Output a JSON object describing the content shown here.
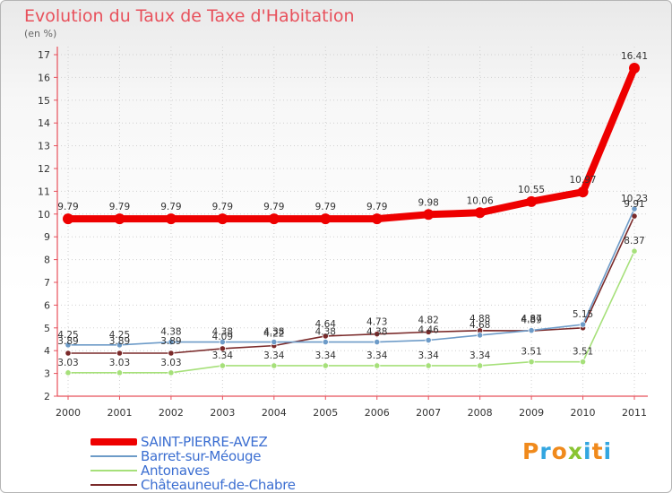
{
  "title": "Evolution du Taux de Taxe d'Habitation",
  "subtitle": "(en %)",
  "brand": {
    "letters": [
      "P",
      "r",
      "o",
      "x",
      "i",
      "t",
      "i"
    ],
    "colors": [
      "#f08a1c",
      "#33a6e0",
      "#f08a1c",
      "#8ac432",
      "#33a6e0",
      "#f08a1c",
      "#33a6e0"
    ]
  },
  "chart_data": {
    "type": "line",
    "x": [
      "2000",
      "2001",
      "2002",
      "2003",
      "2004",
      "2005",
      "2006",
      "2007",
      "2008",
      "2009",
      "2010",
      "2011"
    ],
    "ylim": [
      2,
      17
    ],
    "yticks": [
      "2",
      "3",
      "4",
      "5",
      "6",
      "7",
      "8",
      "9",
      "10",
      "11",
      "12",
      "13",
      "14",
      "15",
      "16",
      "17"
    ],
    "grid": true,
    "legend_position": "bottom-left",
    "series": [
      {
        "name": "SAINT-PIERRE-AVEZ",
        "color": "#ee0000",
        "values": [
          9.79,
          9.79,
          9.79,
          9.79,
          9.79,
          9.79,
          9.79,
          9.98,
          10.06,
          10.55,
          10.97,
          16.41
        ],
        "labels": [
          "9.79",
          "9.79",
          "9.79",
          "9.79",
          "9.79",
          "9.79",
          "9.79",
          "9.98",
          "10.06",
          "10.55",
          "10.97",
          "16.41"
        ]
      },
      {
        "name": "Barret-sur-Méouge",
        "color": "#6d9bc8",
        "values": [
          4.25,
          4.25,
          4.38,
          4.38,
          4.38,
          4.38,
          4.38,
          4.46,
          4.68,
          4.89,
          5.15,
          10.23
        ],
        "labels": [
          "4.25",
          "4.25",
          "4.38",
          "4.38",
          "4.38",
          "4.38",
          "4.38",
          "4.46",
          "4.68",
          "4.89",
          "5.15",
          "10.23"
        ]
      },
      {
        "name": "Antonaves",
        "color": "#a6e07a",
        "values": [
          3.03,
          3.03,
          3.03,
          3.34,
          3.34,
          3.34,
          3.34,
          3.34,
          3.34,
          3.51,
          3.51,
          8.37
        ],
        "labels": [
          "3.03",
          "3.03",
          "3.03",
          "3.34",
          "3.34",
          "3.34",
          "3.34",
          "3.34",
          "3.34",
          "3.51",
          "3.51",
          "8.37"
        ]
      },
      {
        "name": "Châteauneuf-de-Chabre",
        "color": "#7a2a2a",
        "values": [
          3.89,
          3.89,
          3.89,
          4.09,
          4.22,
          4.64,
          4.73,
          4.82,
          4.88,
          4.87,
          5.0,
          9.91
        ],
        "labels": [
          "3.89",
          "3.89",
          "3.89",
          "4.09",
          "4.22",
          "4.64",
          "4.73",
          "4.82",
          "4.88",
          "4.87",
          "",
          "9.91"
        ]
      }
    ]
  }
}
